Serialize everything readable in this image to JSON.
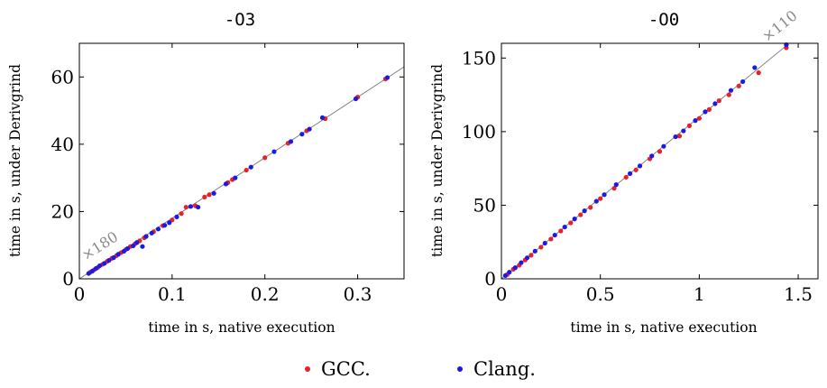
{
  "chart_data": [
    {
      "type": "scatter",
      "title": "-O3",
      "xlabel": "time in s, native execution",
      "ylabel": "time in s, under Derivgrind",
      "xlim": [
        0,
        0.35
      ],
      "ylim": [
        0,
        70
      ],
      "xticks": [
        0,
        0.1,
        0.2,
        0.3
      ],
      "xtick_labels": [
        "0",
        "0.1",
        "0.2",
        "0.3"
      ],
      "yticks": [
        0,
        20,
        40,
        60
      ],
      "ytick_labels": [
        "0",
        "20",
        "40",
        "60"
      ],
      "grid": false,
      "fit_line": {
        "slope": 180,
        "x": [
          0,
          0.35
        ],
        "label": "×180"
      },
      "series": [
        {
          "name": "GCC.",
          "color": "#e8202a",
          "points": [
            [
              0.012,
              2.0
            ],
            [
              0.016,
              2.7
            ],
            [
              0.02,
              3.4
            ],
            [
              0.025,
              4.3
            ],
            [
              0.03,
              5.2
            ],
            [
              0.035,
              6.1
            ],
            [
              0.04,
              6.9
            ],
            [
              0.045,
              7.8
            ],
            [
              0.05,
              8.7
            ],
            [
              0.055,
              9.6
            ],
            [
              0.06,
              10.4
            ],
            [
              0.065,
              11.3
            ],
            [
              0.07,
              12.2
            ],
            [
              0.08,
              14.0
            ],
            [
              0.09,
              15.8
            ],
            [
              0.1,
              17.5
            ],
            [
              0.11,
              19.4
            ],
            [
              0.115,
              21.3
            ],
            [
              0.125,
              21.7
            ],
            [
              0.135,
              24.3
            ],
            [
              0.14,
              25.0
            ],
            [
              0.16,
              28.6
            ],
            [
              0.165,
              29.5
            ],
            [
              0.18,
              32.3
            ],
            [
              0.2,
              36.0
            ],
            [
              0.225,
              40.3
            ],
            [
              0.245,
              44.0
            ],
            [
              0.265,
              47.6
            ],
            [
              0.3,
              54.0
            ],
            [
              0.33,
              59.4
            ]
          ]
        },
        {
          "name": "Clang.",
          "color": "#1a1ae6",
          "points": [
            [
              0.01,
              1.6
            ],
            [
              0.014,
              2.3
            ],
            [
              0.018,
              3.1
            ],
            [
              0.022,
              3.9
            ],
            [
              0.027,
              4.6
            ],
            [
              0.032,
              5.5
            ],
            [
              0.037,
              6.3
            ],
            [
              0.042,
              7.3
            ],
            [
              0.048,
              8.2
            ],
            [
              0.052,
              9.0
            ],
            [
              0.058,
              9.8
            ],
            [
              0.062,
              10.8
            ],
            [
              0.068,
              9.6
            ],
            [
              0.072,
              12.6
            ],
            [
              0.078,
              13.6
            ],
            [
              0.085,
              14.8
            ],
            [
              0.092,
              15.9
            ],
            [
              0.097,
              16.7
            ],
            [
              0.105,
              18.4
            ],
            [
              0.12,
              21.5
            ],
            [
              0.128,
              21.3
            ],
            [
              0.145,
              25.4
            ],
            [
              0.158,
              28.2
            ],
            [
              0.168,
              30.0
            ],
            [
              0.185,
              33.2
            ],
            [
              0.21,
              37.8
            ],
            [
              0.228,
              40.8
            ],
            [
              0.24,
              43.0
            ],
            [
              0.248,
              44.5
            ],
            [
              0.262,
              47.9
            ],
            [
              0.298,
              53.5
            ],
            [
              0.332,
              59.8
            ]
          ]
        }
      ]
    },
    {
      "type": "scatter",
      "title": "-O0",
      "xlabel": "time in s, native execution",
      "ylabel": "time in s, under Derivgrind",
      "xlim": [
        0,
        1.6
      ],
      "ylim": [
        0,
        160
      ],
      "xticks": [
        0,
        0.5,
        1,
        1.5
      ],
      "xtick_labels": [
        "0",
        "0.5",
        "1",
        "1.5"
      ],
      "yticks": [
        0,
        50,
        100,
        150
      ],
      "ytick_labels": [
        "0",
        "50",
        "100",
        "150"
      ],
      "grid": false,
      "fit_line": {
        "slope": 110,
        "x": [
          0,
          1.45
        ],
        "label": "×110"
      },
      "series": [
        {
          "name": "GCC.",
          "color": "#e8202a",
          "points": [
            [
              0.03,
              3.0
            ],
            [
              0.06,
              6.5
            ],
            [
              0.09,
              9.2
            ],
            [
              0.12,
              12.8
            ],
            [
              0.15,
              16.0
            ],
            [
              0.2,
              21.5
            ],
            [
              0.25,
              27.0
            ],
            [
              0.3,
              32.5
            ],
            [
              0.35,
              38.0
            ],
            [
              0.4,
              43.5
            ],
            [
              0.45,
              48.5
            ],
            [
              0.5,
              54.5
            ],
            [
              0.57,
              61.5
            ],
            [
              0.63,
              69.0
            ],
            [
              0.68,
              74.0
            ],
            [
              0.75,
              81.5
            ],
            [
              0.8,
              86.5
            ],
            [
              0.9,
              97.0
            ],
            [
              0.95,
              104.0
            ],
            [
              1.0,
              109.0
            ],
            [
              1.05,
              115.0
            ],
            [
              1.1,
              121.0
            ],
            [
              1.15,
              125.0
            ],
            [
              1.2,
              131.0
            ],
            [
              1.3,
              140.0
            ],
            [
              1.44,
              157.0
            ]
          ]
        },
        {
          "name": "Clang.",
          "color": "#1a1ae6",
          "points": [
            [
              0.02,
              2.2
            ],
            [
              0.04,
              4.5
            ],
            [
              0.07,
              7.6
            ],
            [
              0.1,
              11.0
            ],
            [
              0.13,
              14.3
            ],
            [
              0.17,
              18.8
            ],
            [
              0.22,
              24.2
            ],
            [
              0.27,
              29.7
            ],
            [
              0.32,
              35.2
            ],
            [
              0.37,
              40.7
            ],
            [
              0.42,
              46.2
            ],
            [
              0.48,
              52.7
            ],
            [
              0.52,
              57.2
            ],
            [
              0.58,
              64.0
            ],
            [
              0.65,
              71.5
            ],
            [
              0.7,
              76.7
            ],
            [
              0.76,
              83.5
            ],
            [
              0.82,
              90.0
            ],
            [
              0.88,
              96.5
            ],
            [
              0.92,
              100.5
            ],
            [
              0.98,
              107.5
            ],
            [
              1.03,
              113.5
            ],
            [
              1.08,
              119.0
            ],
            [
              1.16,
              128.0
            ],
            [
              1.22,
              134.0
            ],
            [
              1.28,
              143.5
            ],
            [
              1.44,
              159.0
            ]
          ]
        }
      ]
    }
  ],
  "legend": {
    "entries": [
      {
        "label": "GCC.",
        "color": "#e8202a"
      },
      {
        "label": "Clang.",
        "color": "#1a1ae6"
      }
    ],
    "placement": "bottom-center"
  }
}
